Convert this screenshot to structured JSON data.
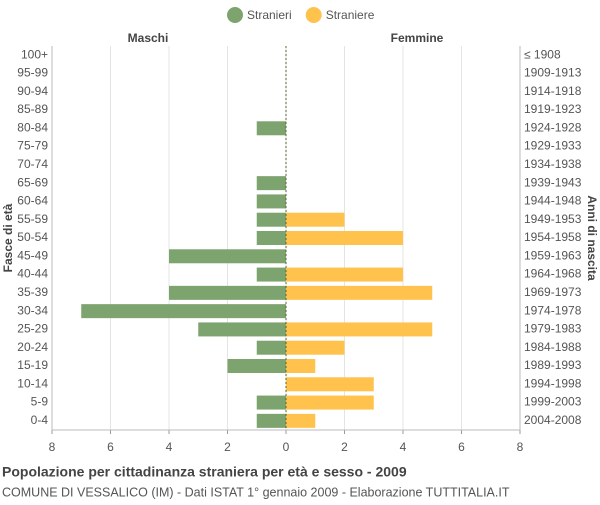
{
  "chart_data": {
    "type": "pyramid",
    "title": "Popolazione per cittadinanza straniera per età e sesso - 2009",
    "subtitle": "COMUNE DI VESSALICO (IM) - Dati ISTAT 1° gennaio 2009 - Elaborazione TUTTITALIA.IT",
    "left_label": "Maschi",
    "right_label": "Femmine",
    "ylabel": "Fasce di età",
    "y2label": "Anni di nascita",
    "categories": [
      "100+",
      "95-99",
      "90-94",
      "85-89",
      "80-84",
      "75-79",
      "70-74",
      "65-69",
      "60-64",
      "55-59",
      "50-54",
      "45-49",
      "40-44",
      "35-39",
      "30-34",
      "25-29",
      "20-24",
      "15-19",
      "10-14",
      "5-9",
      "0-4"
    ],
    "birth_years": [
      "≤ 1908",
      "1909-1913",
      "1914-1918",
      "1919-1923",
      "1924-1928",
      "1929-1933",
      "1934-1938",
      "1939-1943",
      "1944-1948",
      "1949-1953",
      "1954-1958",
      "1959-1963",
      "1964-1968",
      "1969-1973",
      "1974-1978",
      "1979-1983",
      "1984-1988",
      "1989-1993",
      "1994-1998",
      "1999-2003",
      "2004-2008"
    ],
    "series": [
      {
        "name": "Stranieri",
        "color": "#7da46f",
        "side": "left",
        "values": [
          0,
          0,
          0,
          0,
          1,
          0,
          0,
          1,
          1,
          1,
          1,
          4,
          1,
          4,
          7,
          3,
          1,
          2,
          0,
          1,
          1
        ]
      },
      {
        "name": "Straniere",
        "color": "#ffc34d",
        "side": "right",
        "values": [
          0,
          0,
          0,
          0,
          0,
          0,
          0,
          0,
          0,
          2,
          4,
          0,
          4,
          5,
          0,
          5,
          2,
          1,
          3,
          3,
          1
        ]
      }
    ],
    "xlim": [
      -8,
      8
    ],
    "xticks": [
      {
        "value": -8,
        "label": "8"
      },
      {
        "value": -6,
        "label": "6"
      },
      {
        "value": -4,
        "label": "4"
      },
      {
        "value": -2,
        "label": "2"
      },
      0,
      2,
      4,
      6,
      8
    ],
    "grid": true
  }
}
